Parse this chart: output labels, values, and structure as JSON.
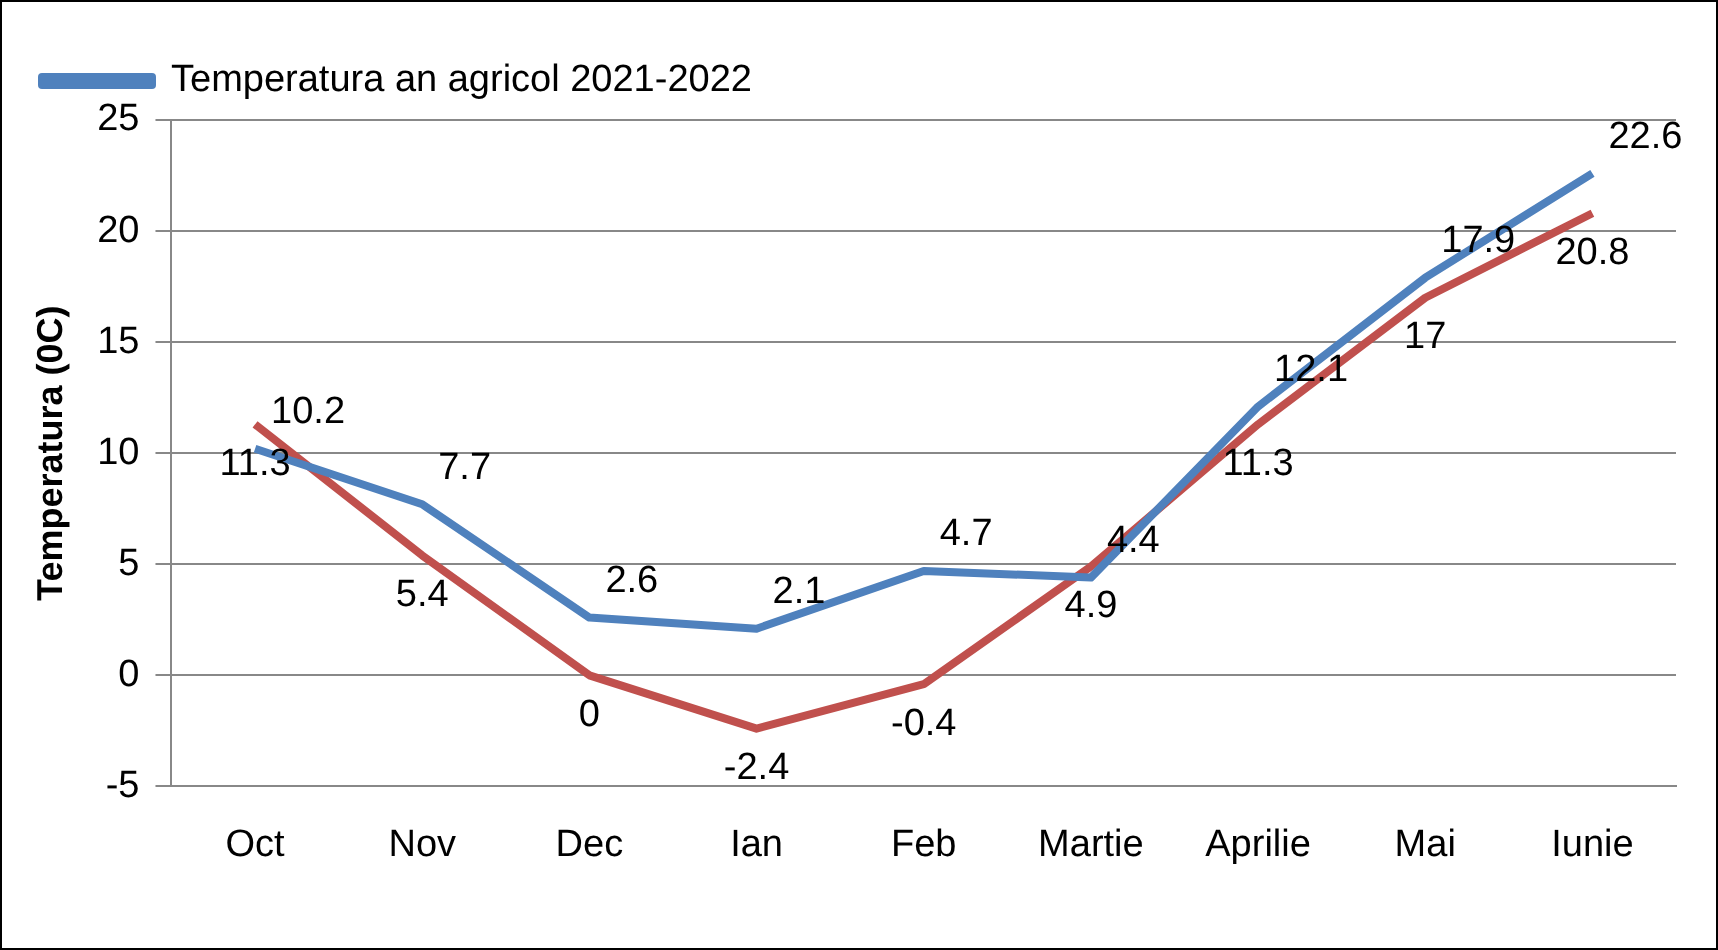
{
  "chart_data": {
    "type": "line",
    "ylabel": "Temperatura (0C)",
    "categories": [
      "Oct",
      "Nov",
      "Dec",
      "Ian",
      "Feb",
      "Martie",
      "Aprilie",
      "Mai",
      "Iunie"
    ],
    "series": [
      {
        "name": "Temperatura an agricol 2021-2022",
        "color": "#4f81bd",
        "values": [
          10.2,
          7.7,
          2.6,
          2.1,
          4.7,
          4.4,
          12.1,
          17.9,
          22.6
        ]
      },
      {
        "color": "#c0504d",
        "values": [
          11.3,
          5.4,
          0,
          -2.4,
          -0.4,
          4.9,
          11.3,
          17,
          20.8
        ]
      }
    ],
    "ylim": [
      -5,
      25
    ],
    "yticks": [
      -5,
      0,
      5,
      10,
      15,
      20,
      25
    ],
    "grid": "y",
    "legend": "top left",
    "marker": "none",
    "data_labels": true
  }
}
